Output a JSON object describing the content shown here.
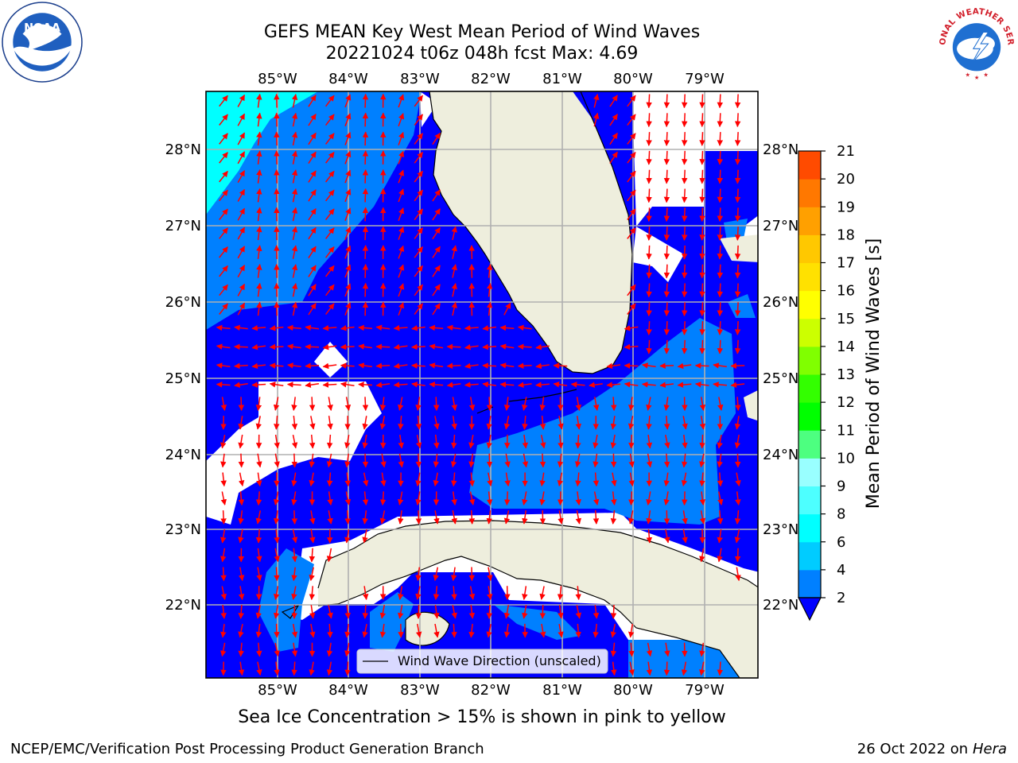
{
  "header": {
    "title_line1": "GEFS MEAN Key West Mean Period of Wind Waves",
    "title_line2": "20221024 t06z 048h fcst   Max: 4.69"
  },
  "logos": {
    "left": {
      "icon": "noaa-logo",
      "text": "NOAA"
    },
    "right": {
      "icon": "nws-logo",
      "ring_text": "NATIONAL WEATHER SERVICE"
    }
  },
  "map": {
    "lon_labels": [
      "85°W",
      "84°W",
      "83°W",
      "82°W",
      "81°W",
      "80°W",
      "79°W"
    ],
    "lat_labels": [
      "28°N",
      "27°N",
      "26°N",
      "25°N",
      "24°N",
      "23°N",
      "22°N"
    ],
    "legend_label": "Wind Wave Direction (unscaled)",
    "colors": {
      "land": "#eeeedd",
      "lt2": "#0000ff",
      "b2_4": "#0080ff",
      "b4_6": "#00ffff",
      "arrow": "#ff0000",
      "grid": "#b0b0b0"
    }
  },
  "colorbar": {
    "label": "Mean Period of Wind Waves [s]",
    "ticks": [
      "2",
      "4",
      "6",
      "8",
      "9",
      "10",
      "11",
      "12",
      "13",
      "14",
      "15",
      "16",
      "17",
      "18",
      "19",
      "20",
      "21"
    ],
    "colors": [
      "#0080ff",
      "#00ccff",
      "#00ffff",
      "#4dffff",
      "#99ffff",
      "#4dff80",
      "#00ff00",
      "#33ff00",
      "#80ff00",
      "#ccff00",
      "#ffff00",
      "#ffe100",
      "#ffc800",
      "#ffa000",
      "#ff7800",
      "#ff4b00",
      "#ff0000"
    ],
    "extend_color": "#0000ff"
  },
  "note": "Sea Ice Concentration > 15% is shown in pink to yellow",
  "footer": {
    "left": "NCEP/EMC/Verification Post Processing Product Generation Branch",
    "right_prefix": "26 Oct 2022 on ",
    "right_host": "Hera"
  }
}
